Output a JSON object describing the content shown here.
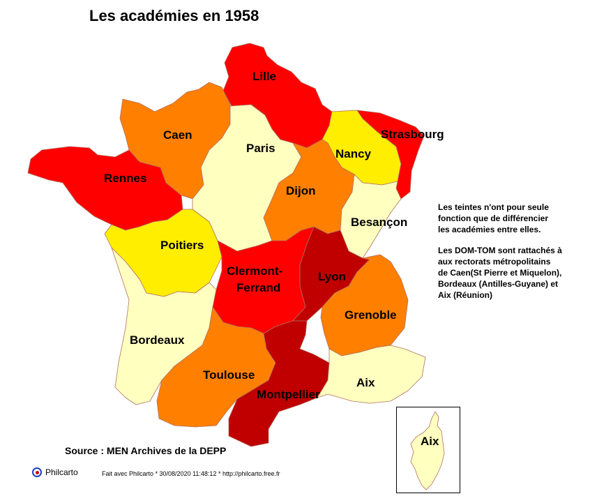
{
  "title": "Les académies en 1958",
  "notes": {
    "line1": "Les teintes n'ont pour seule",
    "line2": "fonction que de différencier",
    "line3": "les académies entre elles.",
    "line4": "Les DOM-TOM sont rattachés à",
    "line5": "aux rectorats métropolitains",
    "line6": "de Caen(St Pierre et Miquelon),",
    "line7": "Bordeaux (Antilles-Guyane) et",
    "line8": "Aix (Réunion)"
  },
  "source": "Source : MEN Archives de la DEPP",
  "credit": {
    "brand": "Philcarto",
    "made_with": "Fait avec Philcarto * 30/08/2020 11:48:12 * http://philcarto.free.fr"
  },
  "colors": {
    "red": "#ff0000",
    "dark_red": "#c00000",
    "orange": "#ff8000",
    "yellow": "#ffee00",
    "pale": "#ffffc0",
    "border": "#b06060"
  },
  "academies": [
    {
      "name": "Lille",
      "color": "red"
    },
    {
      "name": "Caen",
      "color": "orange"
    },
    {
      "name": "Paris",
      "color": "pale"
    },
    {
      "name": "Nancy",
      "color": "yellow"
    },
    {
      "name": "Strasbourg",
      "color": "red"
    },
    {
      "name": "Rennes",
      "color": "red"
    },
    {
      "name": "Dijon",
      "color": "orange"
    },
    {
      "name": "Besançon",
      "color": "pale"
    },
    {
      "name": "Poitiers",
      "color": "yellow"
    },
    {
      "name": "Clermont-",
      "color": "red"
    },
    {
      "name": "Ferrand",
      "color": "red"
    },
    {
      "name": "Lyon",
      "color": "dark_red"
    },
    {
      "name": "Grenoble",
      "color": "orange"
    },
    {
      "name": "Bordeaux",
      "color": "pale"
    },
    {
      "name": "Toulouse",
      "color": "orange"
    },
    {
      "name": "Aix",
      "color": "pale"
    },
    {
      "name": "Montpellier",
      "color": "dark_red"
    },
    {
      "name": "Aix",
      "color": "pale"
    }
  ]
}
